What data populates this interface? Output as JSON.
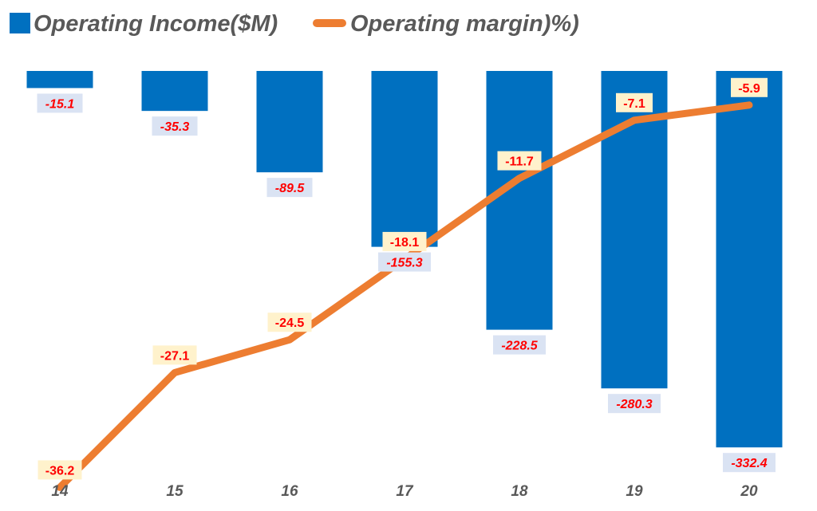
{
  "chart_data": {
    "type": "bar",
    "categories": [
      "14",
      "15",
      "16",
      "17",
      "18",
      "19",
      "20"
    ],
    "series": [
      {
        "name": "Operating Income($M)",
        "type": "bar",
        "values": [
          -15.1,
          -35.3,
          -89.5,
          -155.3,
          -228.5,
          -280.3,
          -332.4
        ],
        "labels": [
          "-15.1",
          "-35.3",
          "-89.5",
          "-155.3",
          "-228.5",
          "-280.3",
          "-332.4"
        ],
        "color": "#0070c0"
      },
      {
        "name": "Operating margin)%)",
        "type": "line",
        "values": [
          -36.2,
          -27.1,
          -24.5,
          -18.1,
          -11.7,
          -7.1,
          -5.9
        ],
        "labels": [
          "-36.2",
          "-27.1",
          "-24.5",
          "-18.1",
          "-11.7",
          "-7.1",
          "-5.9"
        ],
        "color": "#ed7d31"
      }
    ],
    "legend": {
      "position": "top-left",
      "items": [
        "Operating Income($M)",
        "Operating margin)%)"
      ]
    },
    "grid": false,
    "bar_label_bg": "#dae3f3",
    "line_label_bg": "#fff2cc",
    "label_color": "#ff0000",
    "tick_color": "#595959"
  }
}
